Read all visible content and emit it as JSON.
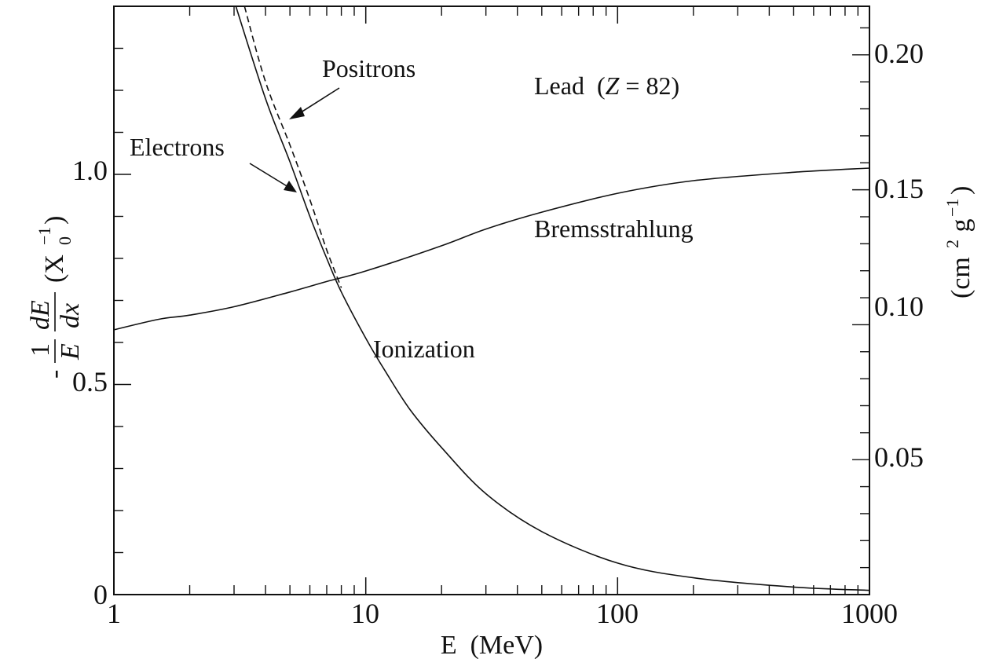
{
  "chart_data": {
    "type": "line",
    "x_scale": "log",
    "xlim": [
      1,
      1000
    ],
    "ylim": [
      0,
      1.4
    ],
    "y2lim": [
      0,
      0.218
    ],
    "x_tick_labels": [
      "1",
      "10",
      "100",
      "1000"
    ],
    "y_tick_labels": [
      "0",
      "0.5",
      "1.0"
    ],
    "y2_tick_labels": [
      "0.05",
      "0.10",
      "0.15",
      "0.20"
    ],
    "xlabel": "E  (MeV)",
    "ylabel": {
      "prefix": "-",
      "frac1_num": "1",
      "frac1_den": "E",
      "frac2_num": "dE",
      "frac2_den": "dx",
      "unit_open": "(X",
      "unit_sub": "0",
      "unit_sup": "−1",
      "unit_close": ")"
    },
    "y2label": {
      "open": "(cm",
      "sup1": "2",
      "mid": " g",
      "sup2": "−1",
      "close": ")"
    },
    "annotations": {
      "title_prefix": "Lead  (",
      "title_z": "Z",
      "title_suffix": " = 82)",
      "positrons": "Positrons",
      "electrons": "Electrons",
      "bremsstrahlung": "Bremsstrahlung",
      "ionization": "Ionization"
    },
    "grid": false,
    "series": [
      {
        "name": "Bremsstrahlung",
        "style": "solid",
        "x": [
          1,
          1.5,
          2,
          3,
          5,
          7,
          10,
          20,
          30,
          50,
          100,
          200,
          500,
          1000
        ],
        "y": [
          0.63,
          0.655,
          0.665,
          0.685,
          0.72,
          0.745,
          0.77,
          0.83,
          0.87,
          0.91,
          0.955,
          0.985,
          1.005,
          1.015
        ]
      },
      {
        "name": "Electrons",
        "style": "solid",
        "x": [
          3.05,
          4,
          5,
          6,
          7,
          8,
          10,
          12,
          15,
          20,
          30,
          50,
          100,
          200,
          500,
          1000
        ],
        "y": [
          1.4,
          1.18,
          1.03,
          0.9,
          0.8,
          0.72,
          0.61,
          0.53,
          0.44,
          0.35,
          0.24,
          0.15,
          0.075,
          0.04,
          0.018,
          0.01
        ]
      },
      {
        "name": "Positrons",
        "style": "dashed",
        "x": [
          3.3,
          4,
          5,
          6,
          7,
          8
        ],
        "y": [
          1.4,
          1.22,
          1.07,
          0.94,
          0.82,
          0.73
        ]
      }
    ]
  }
}
